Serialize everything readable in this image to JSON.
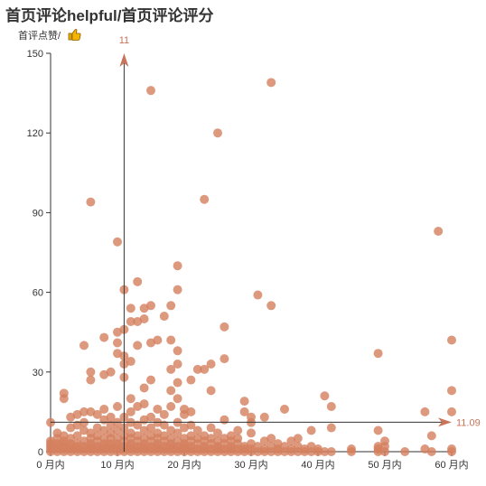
{
  "title": "首页评论helpful/首页评论评分",
  "y_axis_name": "首评点赞/",
  "y_axis_icon": "thumbs-up-icon",
  "colors": {
    "point": "#d4805e",
    "reference": "#c8735a",
    "axis": "#333333",
    "text": "#333333"
  },
  "reference_lines": {
    "x_mean_label": "11",
    "y_mean_label": "11.09"
  },
  "chart_data": {
    "type": "scatter",
    "title": "首页评论helpful/首页评论评分",
    "xlabel": "",
    "ylabel": "首评点赞/",
    "x_unit": "月内",
    "xlim": [
      0,
      60
    ],
    "ylim": [
      0,
      150
    ],
    "x_ticks": [
      "0 月内",
      "10 月内",
      "20 月内",
      "30 月内",
      "40 月内",
      "50 月内",
      "60 月内"
    ],
    "y_ticks": [
      "0",
      "30",
      "60",
      "90",
      "120",
      "150"
    ],
    "grid": false,
    "legend": "none",
    "reference_lines": [
      {
        "axis": "x",
        "value": 11,
        "label": "11"
      },
      {
        "axis": "y",
        "value": 11.09,
        "label": "11.09"
      }
    ],
    "points": [
      [
        0,
        0
      ],
      [
        0,
        1
      ],
      [
        0,
        2
      ],
      [
        0,
        3
      ],
      [
        0,
        4
      ],
      [
        0,
        11
      ],
      [
        1,
        0
      ],
      [
        1,
        1
      ],
      [
        1,
        2
      ],
      [
        1,
        3
      ],
      [
        1,
        5
      ],
      [
        1,
        7
      ],
      [
        2,
        0
      ],
      [
        2,
        1
      ],
      [
        2,
        2
      ],
      [
        2,
        3
      ],
      [
        2,
        4
      ],
      [
        2,
        6
      ],
      [
        2,
        20
      ],
      [
        2,
        22
      ],
      [
        3,
        0
      ],
      [
        3,
        1
      ],
      [
        3,
        2
      ],
      [
        3,
        3
      ],
      [
        3,
        5
      ],
      [
        3,
        9
      ],
      [
        3,
        13
      ],
      [
        4,
        0
      ],
      [
        4,
        1
      ],
      [
        4,
        2
      ],
      [
        4,
        3
      ],
      [
        4,
        6
      ],
      [
        4,
        10
      ],
      [
        4,
        14
      ],
      [
        5,
        0
      ],
      [
        5,
        1
      ],
      [
        5,
        2
      ],
      [
        5,
        4
      ],
      [
        5,
        8
      ],
      [
        5,
        11
      ],
      [
        5,
        15
      ],
      [
        5,
        40
      ],
      [
        6,
        0
      ],
      [
        6,
        1
      ],
      [
        6,
        2
      ],
      [
        6,
        3
      ],
      [
        6,
        5
      ],
      [
        6,
        7
      ],
      [
        6,
        15
      ],
      [
        6,
        27
      ],
      [
        6,
        30
      ],
      [
        6,
        94
      ],
      [
        7,
        0
      ],
      [
        7,
        1
      ],
      [
        7,
        2
      ],
      [
        7,
        4
      ],
      [
        7,
        6
      ],
      [
        7,
        9
      ],
      [
        7,
        14
      ],
      [
        8,
        0
      ],
      [
        8,
        1
      ],
      [
        8,
        2
      ],
      [
        8,
        3
      ],
      [
        8,
        5
      ],
      [
        8,
        8
      ],
      [
        8,
        12
      ],
      [
        8,
        16
      ],
      [
        8,
        29
      ],
      [
        8,
        43
      ],
      [
        9,
        0
      ],
      [
        9,
        1
      ],
      [
        9,
        2
      ],
      [
        9,
        3
      ],
      [
        9,
        5
      ],
      [
        9,
        7
      ],
      [
        9,
        10
      ],
      [
        9,
        13
      ],
      [
        9,
        30
      ],
      [
        10,
        0
      ],
      [
        10,
        1
      ],
      [
        10,
        2
      ],
      [
        10,
        3
      ],
      [
        10,
        5
      ],
      [
        10,
        8
      ],
      [
        10,
        11
      ],
      [
        10,
        17
      ],
      [
        10,
        37
      ],
      [
        10,
        41
      ],
      [
        10,
        45
      ],
      [
        10,
        79
      ],
      [
        11,
        0
      ],
      [
        11,
        1
      ],
      [
        11,
        2
      ],
      [
        11,
        4
      ],
      [
        11,
        6
      ],
      [
        11,
        9
      ],
      [
        11,
        13
      ],
      [
        11,
        28
      ],
      [
        11,
        33
      ],
      [
        11,
        36
      ],
      [
        11,
        46
      ],
      [
        11,
        61
      ],
      [
        12,
        0
      ],
      [
        12,
        1
      ],
      [
        12,
        2
      ],
      [
        12,
        3
      ],
      [
        12,
        5
      ],
      [
        12,
        7
      ],
      [
        12,
        11
      ],
      [
        12,
        15
      ],
      [
        12,
        20
      ],
      [
        12,
        34
      ],
      [
        12,
        49
      ],
      [
        12,
        54
      ],
      [
        13,
        0
      ],
      [
        13,
        1
      ],
      [
        13,
        2
      ],
      [
        13,
        4
      ],
      [
        13,
        6
      ],
      [
        13,
        10
      ],
      [
        13,
        17
      ],
      [
        13,
        40
      ],
      [
        13,
        49
      ],
      [
        13,
        64
      ],
      [
        14,
        0
      ],
      [
        14,
        1
      ],
      [
        14,
        2
      ],
      [
        14,
        3
      ],
      [
        14,
        5
      ],
      [
        14,
        8
      ],
      [
        14,
        12
      ],
      [
        14,
        18
      ],
      [
        14,
        24
      ],
      [
        14,
        50
      ],
      [
        14,
        54
      ],
      [
        15,
        0
      ],
      [
        15,
        1
      ],
      [
        15,
        2
      ],
      [
        15,
        4
      ],
      [
        15,
        6
      ],
      [
        15,
        9
      ],
      [
        15,
        13
      ],
      [
        15,
        27
      ],
      [
        15,
        41
      ],
      [
        15,
        55
      ],
      [
        15,
        136
      ],
      [
        16,
        0
      ],
      [
        16,
        1
      ],
      [
        16,
        2
      ],
      [
        16,
        3
      ],
      [
        16,
        5
      ],
      [
        16,
        7
      ],
      [
        16,
        11
      ],
      [
        16,
        16
      ],
      [
        16,
        42
      ],
      [
        17,
        0
      ],
      [
        17,
        1
      ],
      [
        17,
        2
      ],
      [
        17,
        4
      ],
      [
        17,
        6
      ],
      [
        17,
        10
      ],
      [
        17,
        14
      ],
      [
        17,
        51
      ],
      [
        18,
        0
      ],
      [
        18,
        1
      ],
      [
        18,
        2
      ],
      [
        18,
        3
      ],
      [
        18,
        5
      ],
      [
        18,
        8
      ],
      [
        18,
        17
      ],
      [
        18,
        23
      ],
      [
        18,
        31
      ],
      [
        18,
        42
      ],
      [
        18,
        55
      ],
      [
        19,
        0
      ],
      [
        19,
        1
      ],
      [
        19,
        2
      ],
      [
        19,
        4
      ],
      [
        19,
        7
      ],
      [
        19,
        11
      ],
      [
        19,
        20
      ],
      [
        19,
        26
      ],
      [
        19,
        33
      ],
      [
        19,
        38
      ],
      [
        19,
        61
      ],
      [
        19,
        70
      ],
      [
        20,
        0
      ],
      [
        20,
        1
      ],
      [
        20,
        2
      ],
      [
        20,
        3
      ],
      [
        20,
        5
      ],
      [
        20,
        9
      ],
      [
        20,
        14
      ],
      [
        20,
        16
      ],
      [
        21,
        0
      ],
      [
        21,
        1
      ],
      [
        21,
        2
      ],
      [
        21,
        4
      ],
      [
        21,
        6
      ],
      [
        21,
        10
      ],
      [
        21,
        15
      ],
      [
        21,
        27
      ],
      [
        22,
        0
      ],
      [
        22,
        1
      ],
      [
        22,
        3
      ],
      [
        22,
        5
      ],
      [
        22,
        8
      ],
      [
        22,
        31
      ],
      [
        23,
        0
      ],
      [
        23,
        1
      ],
      [
        23,
        2
      ],
      [
        23,
        4
      ],
      [
        23,
        6
      ],
      [
        23,
        31
      ],
      [
        23,
        95
      ],
      [
        24,
        0
      ],
      [
        24,
        1
      ],
      [
        24,
        3
      ],
      [
        24,
        5
      ],
      [
        24,
        9
      ],
      [
        24,
        23
      ],
      [
        24,
        33
      ],
      [
        25,
        0
      ],
      [
        25,
        1
      ],
      [
        25,
        2
      ],
      [
        25,
        4
      ],
      [
        25,
        7
      ],
      [
        25,
        120
      ],
      [
        26,
        0
      ],
      [
        26,
        1
      ],
      [
        26,
        3
      ],
      [
        26,
        5
      ],
      [
        26,
        12
      ],
      [
        26,
        35
      ],
      [
        26,
        47
      ],
      [
        27,
        0
      ],
      [
        27,
        1
      ],
      [
        27,
        2
      ],
      [
        27,
        4
      ],
      [
        27,
        6
      ],
      [
        28,
        0
      ],
      [
        28,
        1
      ],
      [
        28,
        3
      ],
      [
        28,
        5
      ],
      [
        28,
        8
      ],
      [
        29,
        0
      ],
      [
        29,
        1
      ],
      [
        29,
        2
      ],
      [
        29,
        15
      ],
      [
        29,
        19
      ],
      [
        30,
        0
      ],
      [
        30,
        1
      ],
      [
        30,
        3
      ],
      [
        30,
        7
      ],
      [
        30,
        11
      ],
      [
        30,
        13
      ],
      [
        31,
        0
      ],
      [
        31,
        2
      ],
      [
        31,
        59
      ],
      [
        32,
        0
      ],
      [
        32,
        1
      ],
      [
        32,
        4
      ],
      [
        32,
        13
      ],
      [
        33,
        0
      ],
      [
        33,
        2
      ],
      [
        33,
        5
      ],
      [
        33,
        55
      ],
      [
        33,
        139
      ],
      [
        34,
        0
      ],
      [
        34,
        1
      ],
      [
        34,
        3
      ],
      [
        35,
        0
      ],
      [
        35,
        2
      ],
      [
        35,
        16
      ],
      [
        36,
        0
      ],
      [
        36,
        1
      ],
      [
        36,
        4
      ],
      [
        37,
        0
      ],
      [
        37,
        2
      ],
      [
        37,
        5
      ],
      [
        38,
        0
      ],
      [
        38,
        1
      ],
      [
        39,
        0
      ],
      [
        39,
        2
      ],
      [
        39,
        8
      ],
      [
        40,
        0
      ],
      [
        40,
        1
      ],
      [
        41,
        0
      ],
      [
        41,
        21
      ],
      [
        42,
        0
      ],
      [
        42,
        9
      ],
      [
        42,
        17
      ],
      [
        45,
        0
      ],
      [
        45,
        1
      ],
      [
        49,
        0
      ],
      [
        49,
        1
      ],
      [
        49,
        2
      ],
      [
        49,
        8
      ],
      [
        49,
        37
      ],
      [
        50,
        0
      ],
      [
        50,
        2
      ],
      [
        50,
        4
      ],
      [
        53,
        0
      ],
      [
        56,
        1
      ],
      [
        56,
        15
      ],
      [
        57,
        0
      ],
      [
        57,
        6
      ],
      [
        58,
        83
      ],
      [
        60,
        0
      ],
      [
        60,
        1
      ],
      [
        60,
        15
      ],
      [
        60,
        23
      ],
      [
        60,
        42
      ]
    ]
  }
}
